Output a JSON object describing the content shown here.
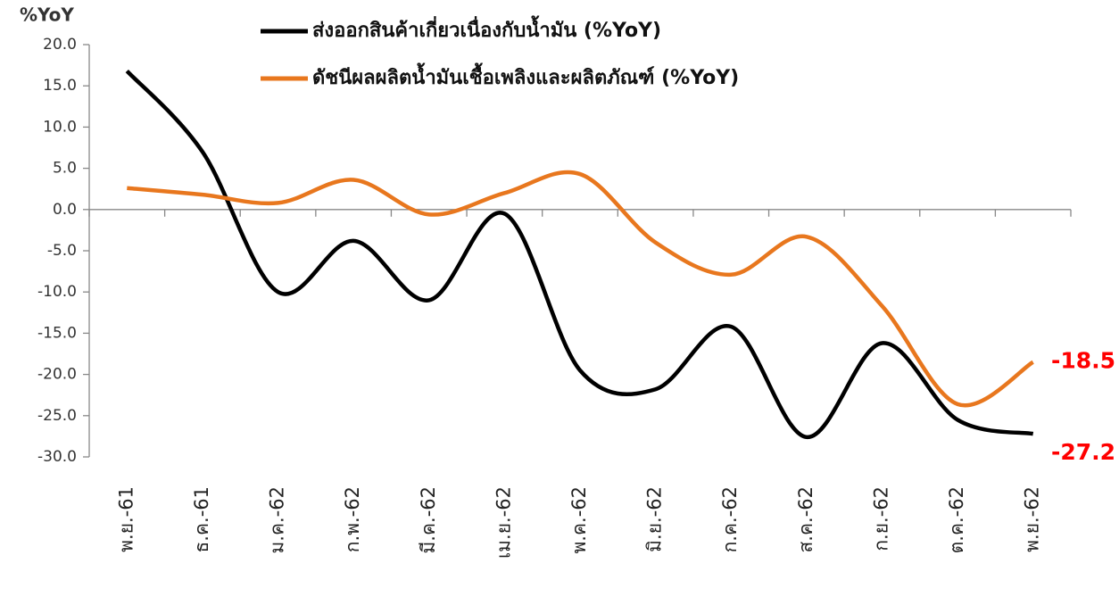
{
  "chart_data": {
    "type": "line",
    "y_axis_label": "%YoY",
    "categories": [
      "พ.ย.-61",
      "ธ.ค.-61",
      "ม.ค.-62",
      "ก.พ.-62",
      "มี.ค.-62",
      "เม.ย.-62",
      "พ.ค.-62",
      "มิ.ย.-62",
      "ก.ค.-62",
      "ส.ค.-62",
      "ก.ย.-62",
      "ต.ค.-62",
      "พ.ย.-62"
    ],
    "series": [
      {
        "name": "ส่งออกสินค้าเกี่ยวเนื่องกับน้ำมัน (%YoY)",
        "color": "#000000",
        "values": [
          16.8,
          7.0,
          -10.0,
          -3.8,
          -11.0,
          -0.5,
          -19.5,
          -21.8,
          -14.2,
          -27.6,
          -16.2,
          -25.5,
          -27.2
        ]
      },
      {
        "name": "ดัชนีผลผลิตน้ำมันเชื้อเพลิงและผลิตภัณฑ์ (%YoY)",
        "color": "#e8771e",
        "values": [
          2.6,
          1.8,
          0.8,
          3.6,
          -0.6,
          2.0,
          4.3,
          -4.0,
          -7.9,
          -3.3,
          -11.7,
          -23.6,
          -18.5
        ]
      }
    ],
    "ylim": [
      -30,
      20
    ],
    "yticks": [
      {
        "value": -30,
        "label": "-30.0"
      },
      {
        "value": -25,
        "label": "-25.0"
      },
      {
        "value": -20,
        "label": "-20.0"
      },
      {
        "value": -15,
        "label": "-15.0"
      },
      {
        "value": -10,
        "label": "-10.0"
      },
      {
        "value": -5,
        "label": "-5.0"
      },
      {
        "value": 0,
        "label": "0.0"
      },
      {
        "value": 5,
        "label": "5.0"
      },
      {
        "value": 10,
        "label": "10.0"
      },
      {
        "value": 15,
        "label": "15.0"
      },
      {
        "value": 20,
        "label": "20.0"
      }
    ],
    "grid": false
  }
}
